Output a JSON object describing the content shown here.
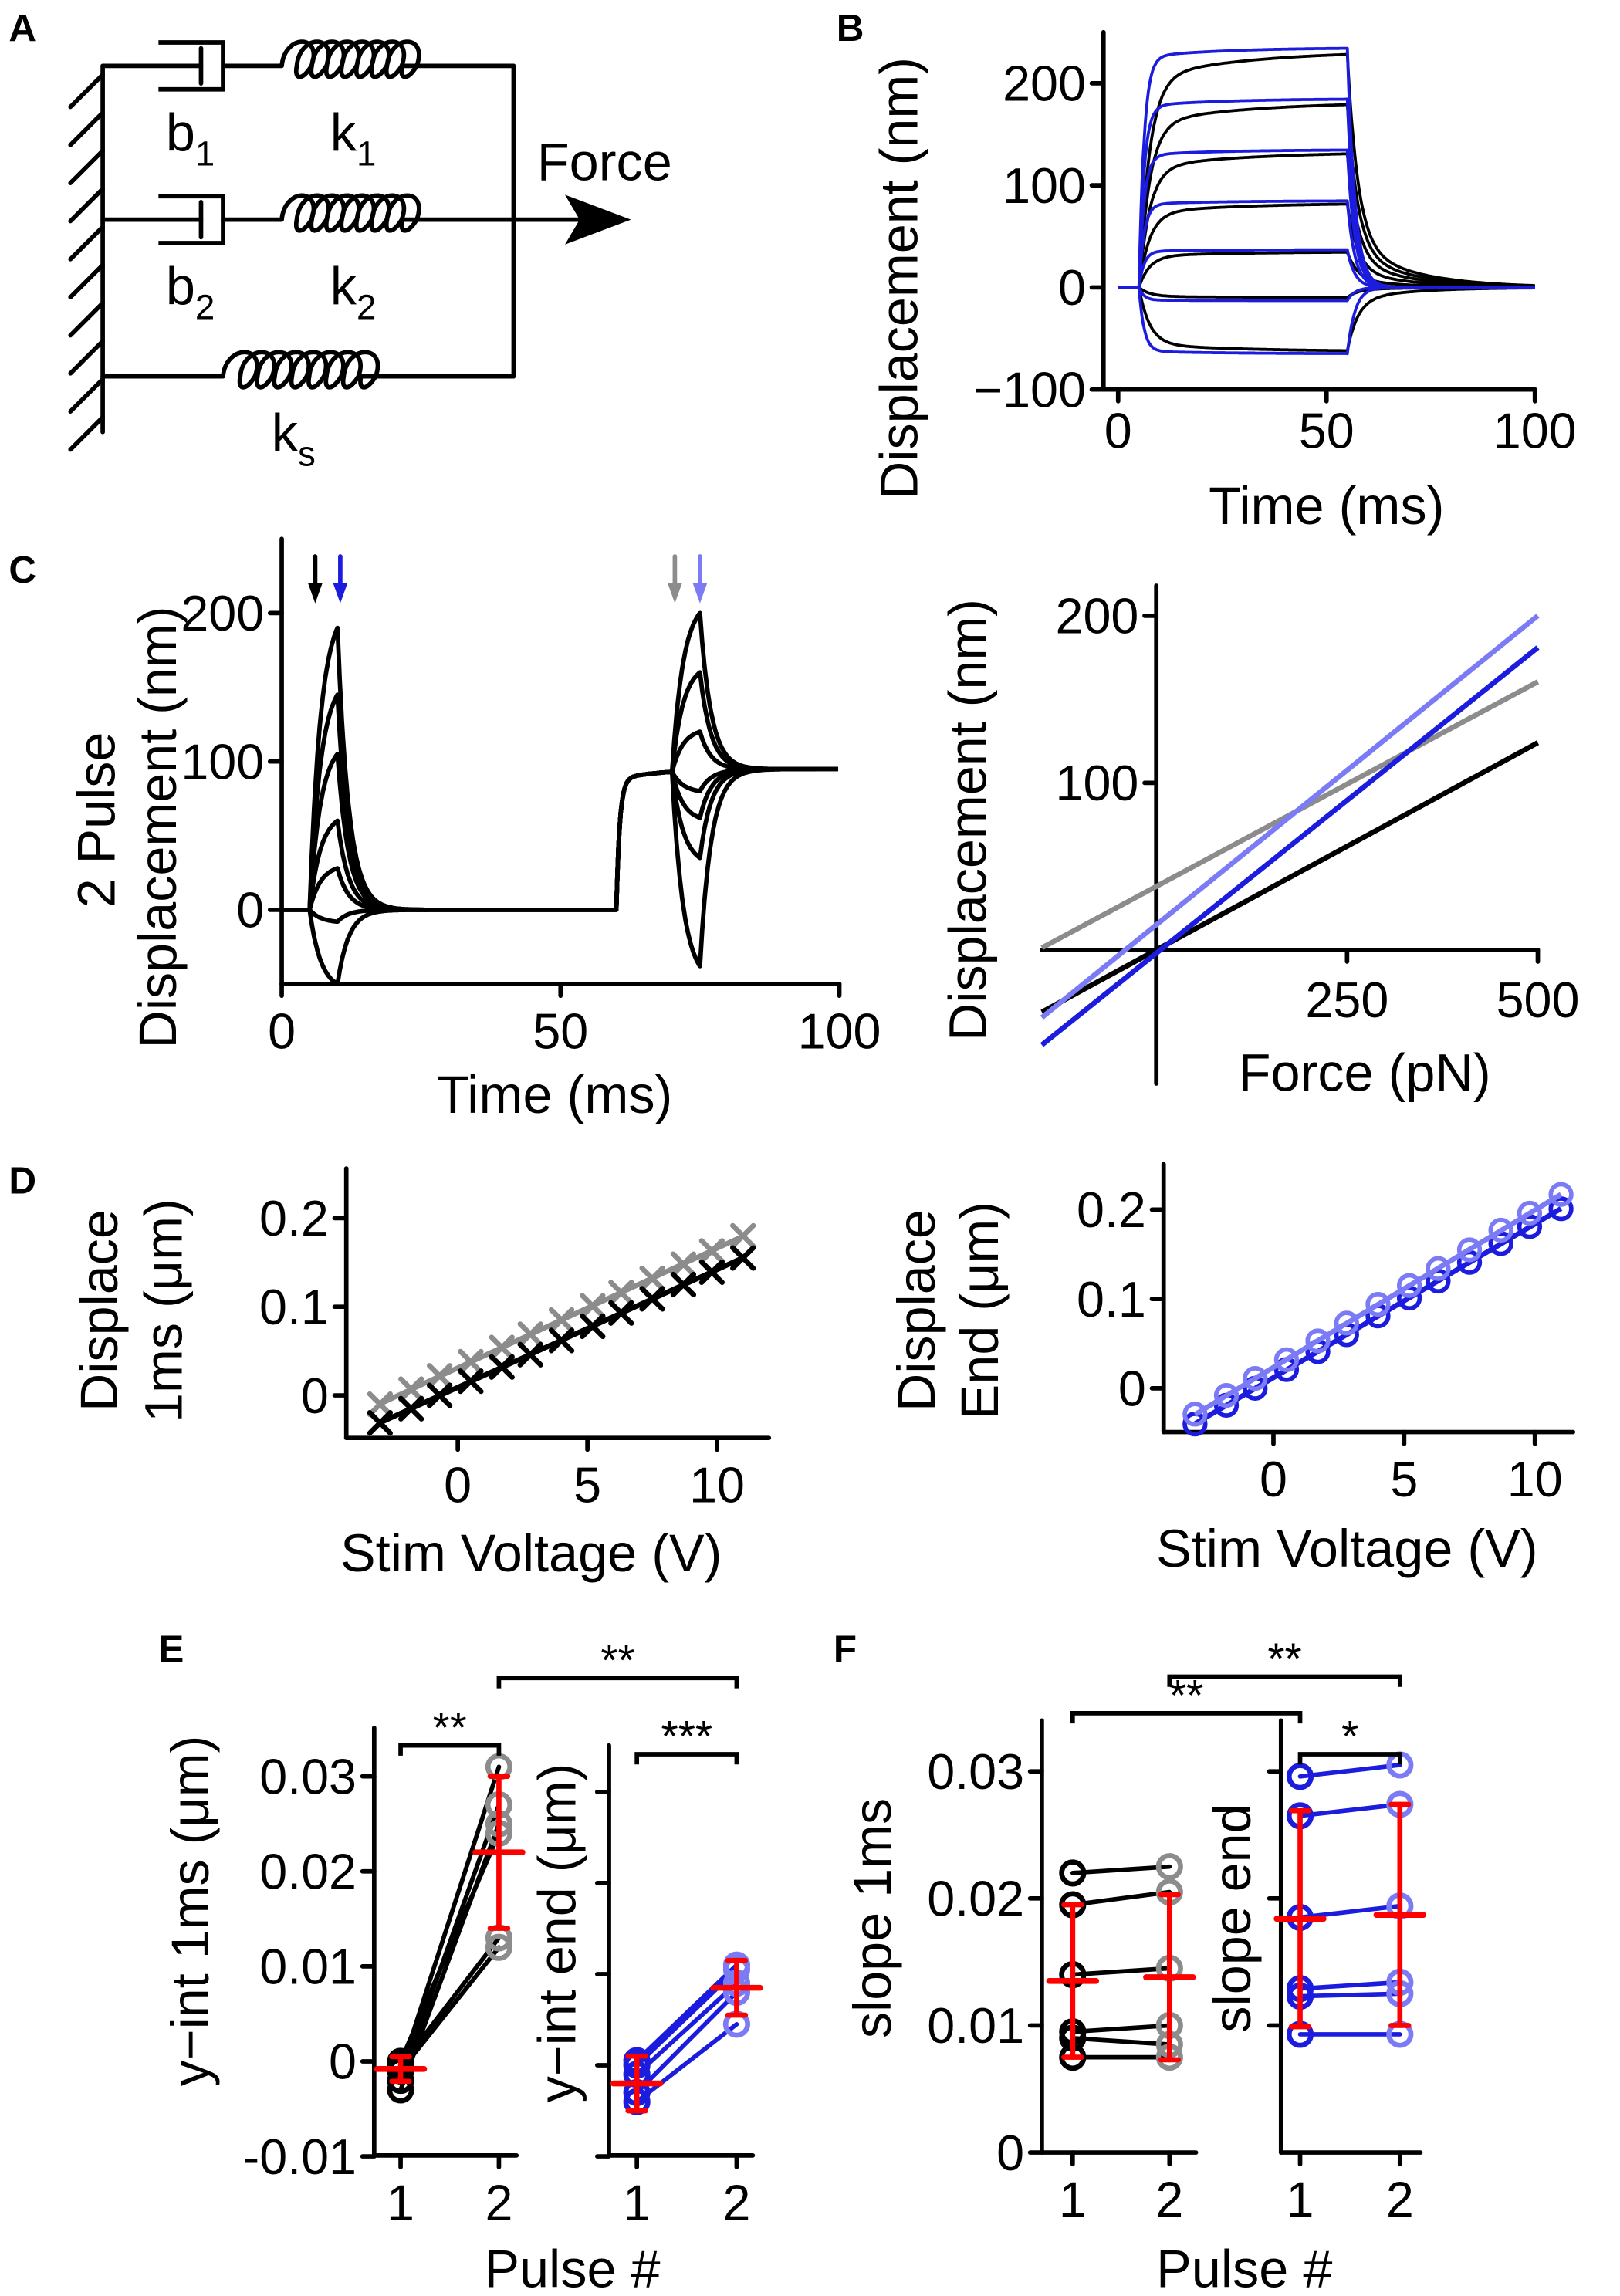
{
  "panel_labels": [
    "A",
    "B",
    "C",
    "D",
    "E",
    "F"
  ],
  "schematic": {
    "b1": "b",
    "b1_sub": "1",
    "k1": "k",
    "k1_sub": "1",
    "b2": "b",
    "b2_sub": "2",
    "k2": "k",
    "k2_sub": "2",
    "ks": "k",
    "ks_sub": "s",
    "force": "Force"
  },
  "colors": {
    "black": "#000000",
    "blue": "#1c1cde",
    "light_blue": "#7b7bf5",
    "gray": "#8c8c8c",
    "red": "#ff0000"
  },
  "chart_data": [
    {
      "panel": "B",
      "type": "line",
      "xlabel": "Time (ms)",
      "ylabel": [
        "Displacement (nm)"
      ],
      "xlim": [
        0,
        100
      ],
      "ylim": [
        -100,
        250
      ],
      "xticks": [
        0,
        50,
        100
      ],
      "xtick_labels": [
        "0",
        "50",
        "100"
      ],
      "yticks": [
        -100,
        0,
        100,
        200
      ],
      "ytick_labels": [
        "−100",
        "0",
        "100",
        "200"
      ],
      "pulse_ms": [
        5,
        55
      ],
      "series": [
        {
          "color": "black",
          "levels": [
            232,
            182,
            133,
            83,
            35,
            -10,
            -63
          ]
        },
        {
          "color": "blue",
          "levels": [
            235,
            185,
            135,
            85,
            37,
            -13,
            -65
          ]
        }
      ]
    },
    {
      "panel": "C-left",
      "type": "line",
      "xlabel": "Time (ms)",
      "ylabel": [
        "2 Pulse",
        "Displacement (nm)"
      ],
      "xlim": [
        0,
        100
      ],
      "ylim": [
        -50,
        250
      ],
      "xticks": [
        0,
        50,
        100
      ],
      "xtick_labels": [
        "0",
        "50",
        "100"
      ],
      "yticks": [
        0,
        100,
        200
      ],
      "ytick_labels": [
        "0",
        "100",
        "200"
      ],
      "pulse1_ms": [
        5,
        10
      ],
      "pulse1_peaks": [
        190,
        145,
        105,
        60,
        28,
        -8,
        -50
      ],
      "prestep_ms": 60,
      "prestep_level": 95,
      "pulse2_ms": [
        70,
        75
      ],
      "pulse2_peaks": [
        200,
        160,
        120,
        80,
        62,
        35,
        -38
      ],
      "arrows": [
        {
          "t": 6,
          "color": "black"
        },
        {
          "t": 10.5,
          "color": "blue"
        },
        {
          "t": 70.5,
          "color": "gray"
        },
        {
          "t": 75,
          "color": "light_blue"
        }
      ]
    },
    {
      "panel": "C-right",
      "type": "line",
      "xlabel": "Force (pN)",
      "ylabel": [
        "Displacement (nm)"
      ],
      "xlim": [
        -150,
        500
      ],
      "ylim": [
        -80,
        218
      ],
      "xticks": [
        250,
        500
      ],
      "xtick_labels": [
        "250",
        "500"
      ],
      "yticks": [
        100,
        200
      ],
      "ytick_labels": [
        "100",
        "200"
      ],
      "lines": [
        {
          "color": "gray",
          "slope": 0.245,
          "intercept": 38
        },
        {
          "color": "black",
          "slope": 0.248,
          "intercept": 0
        },
        {
          "color": "light_blue",
          "slope": 0.37,
          "intercept": 15
        },
        {
          "color": "blue",
          "slope": 0.366,
          "intercept": -2
        }
      ]
    },
    {
      "panel": "D-left",
      "type": "scatter",
      "xlabel": "Stim Voltage (V)",
      "ylabel": [
        "Displace",
        "1ms (μm)"
      ],
      "xlim": [
        -4.3,
        12
      ],
      "ylim": [
        -0.048,
        0.256
      ],
      "xticks": [
        0,
        5,
        10
      ],
      "xtick_labels": [
        "0",
        "5",
        "10"
      ],
      "yticks": [
        0,
        0.1,
        0.2
      ],
      "ytick_labels": [
        "0",
        "0.1",
        "0.2"
      ],
      "x": [
        -3,
        -1.8,
        -0.7,
        0.5,
        1.7,
        2.8,
        4,
        5.2,
        6.3,
        7.5,
        8.7,
        9.8,
        11
      ],
      "series": [
        {
          "color": "gray",
          "marker": "x",
          "values": [
            -0.01,
            0.007,
            0.022,
            0.038,
            0.054,
            0.069,
            0.085,
            0.101,
            0.116,
            0.132,
            0.148,
            0.163,
            0.18
          ],
          "fit": {
            "slope": 0.0135,
            "intercept": 0.031
          }
        },
        {
          "color": "black",
          "marker": "x",
          "values": [
            -0.031,
            -0.015,
            0.0,
            0.016,
            0.032,
            0.046,
            0.062,
            0.078,
            0.093,
            0.109,
            0.125,
            0.139,
            0.155
          ],
          "fit": {
            "slope": 0.0133,
            "intercept": 0.009
          }
        }
      ]
    },
    {
      "panel": "D-right",
      "type": "scatter",
      "xlabel": "Stim Voltage (V)",
      "ylabel": [
        "Displace",
        "End (μm)"
      ],
      "xlim": [
        -4.2,
        11.46
      ],
      "ylim": [
        -0.049,
        0.251
      ],
      "xticks": [
        0,
        5,
        10
      ],
      "xtick_labels": [
        "0",
        "5",
        "10"
      ],
      "yticks": [
        0,
        0.1,
        0.2
      ],
      "ytick_labels": [
        "0",
        "0.1",
        "0.2"
      ],
      "x": [
        -3,
        -1.8,
        -0.7,
        0.5,
        1.7,
        2.8,
        4,
        5.2,
        6.3,
        7.5,
        8.7,
        9.8,
        11
      ],
      "series": [
        {
          "color": "blue",
          "marker": "o",
          "values": [
            -0.04,
            -0.019,
            0.0,
            0.021,
            0.041,
            0.06,
            0.081,
            0.101,
            0.12,
            0.141,
            0.162,
            0.181,
            0.201
          ],
          "fit": {
            "slope": 0.0172,
            "intercept": 0.012
          }
        },
        {
          "color": "light_blue",
          "marker": "o",
          "values": [
            -0.029,
            -0.008,
            0.011,
            0.032,
            0.053,
            0.073,
            0.094,
            0.115,
            0.134,
            0.155,
            0.177,
            0.196,
            0.217
          ],
          "fit": {
            "slope": 0.0176,
            "intercept": 0.0234
          }
        }
      ]
    },
    {
      "panel": "E-left",
      "type": "scatter",
      "xlabel": "Pulse #",
      "ylabel": [
        "y−int 1ms (μm)"
      ],
      "ylim": [
        -0.0099,
        0.0351
      ],
      "categories": [
        "1",
        "2"
      ],
      "yticks": [
        -0.01,
        0,
        0.01,
        0.02,
        0.03
      ],
      "ytick_labels": [
        "-0.01",
        "0",
        "0.01",
        "0.02",
        "0.03"
      ],
      "pulse1": [
        -0.001,
        -0.002,
        -0.003,
        0.0,
        -0.0005,
        -0.001
      ],
      "pulse2": [
        0.031,
        0.027,
        0.025,
        0.024,
        0.013,
        0.012
      ],
      "colors": [
        "black",
        "gray"
      ],
      "line_color": "black",
      "mean": [
        -0.0008,
        0.022
      ],
      "sd": [
        0.0013,
        0.008
      ],
      "significance": "**"
    },
    {
      "panel": "E-right",
      "type": "scatter",
      "ylabel": [
        "y−int end (μm)"
      ],
      "ylim": [
        -0.0099,
        0.0351
      ],
      "categories": [
        "1",
        "2"
      ],
      "yticks": [
        -0.01,
        0,
        0.01,
        0.02,
        0.03
      ],
      "pulse1": [
        0.0005,
        0.0,
        -0.001,
        -0.003,
        -0.004
      ],
      "pulse2": [
        0.011,
        0.0105,
        0.009,
        0.008,
        0.0045
      ],
      "colors": [
        "blue",
        "light_blue"
      ],
      "line_color": "blue",
      "mean": [
        -0.002,
        0.0085
      ],
      "sd": [
        0.003,
        0.003
      ],
      "significance": "***",
      "cross_significance": "**"
    },
    {
      "panel": "F-left",
      "type": "scatter",
      "xlabel": "Pulse #",
      "ylabel": [
        "slope 1ms"
      ],
      "ylim": [
        0,
        0.034
      ],
      "categories": [
        "1",
        "2"
      ],
      "yticks": [
        0,
        0.01,
        0.02,
        0.03
      ],
      "ytick_labels": [
        "0",
        "0.01",
        "0.02",
        "0.03"
      ],
      "pulse1": [
        0.022,
        0.0195,
        0.014,
        0.0095,
        0.009,
        0.0075
      ],
      "pulse2": [
        0.0225,
        0.0205,
        0.0145,
        0.01,
        0.0085,
        0.0075
      ],
      "colors": [
        "black",
        "gray"
      ],
      "line_color": "black",
      "mean": [
        0.0135,
        0.0138
      ],
      "sd": [
        0.006,
        0.0065
      ],
      "cross_significance": "**"
    },
    {
      "panel": "F-right",
      "type": "scatter",
      "ylabel": [
        "slope end"
      ],
      "ylim": [
        0,
        0.034
      ],
      "categories": [
        "1",
        "2"
      ],
      "yticks": [
        0.01,
        0.02,
        0.03
      ],
      "pulse1": [
        0.0296,
        0.0265,
        0.0185,
        0.0129,
        0.0123,
        0.0093
      ],
      "pulse2": [
        0.0305,
        0.0274,
        0.0194,
        0.0134,
        0.0125,
        0.0093
      ],
      "colors": [
        "blue",
        "light_blue"
      ],
      "line_color": "blue",
      "mean": [
        0.0184,
        0.0187
      ],
      "sd": [
        0.0085,
        0.0087
      ],
      "significance": "*",
      "cross_significance": "**"
    }
  ]
}
